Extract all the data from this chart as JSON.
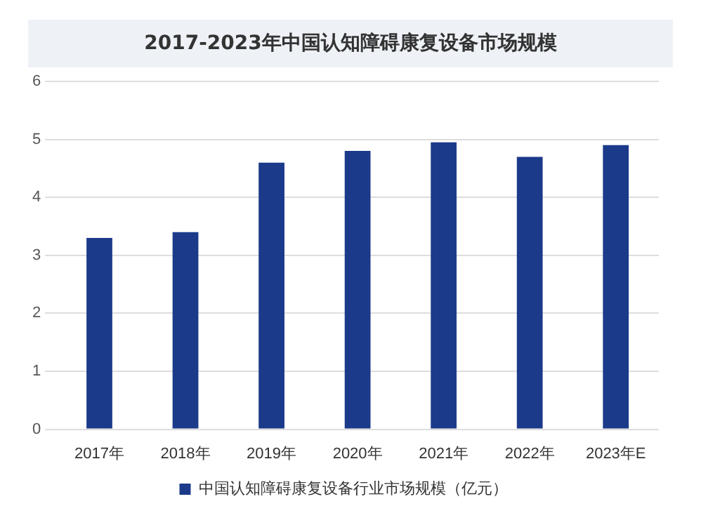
{
  "chart_data": {
    "type": "bar",
    "title": "2017-2023年中国认知障碍康复设备市场规模",
    "categories": [
      "2017年",
      "2018年",
      "2019年",
      "2020年",
      "2021年",
      "2022年",
      "2023年E"
    ],
    "series": [
      {
        "name": "中国认知障碍康复设备行业市场规模（亿元）",
        "color": "#1b3a8a",
        "values": [
          3.3,
          3.4,
          4.6,
          4.8,
          4.95,
          4.7,
          4.9
        ]
      }
    ],
    "ylim": [
      0,
      6
    ],
    "yticks": [
      0,
      1,
      2,
      3,
      4,
      5,
      6
    ],
    "grid": "y",
    "legend": "bottom"
  }
}
